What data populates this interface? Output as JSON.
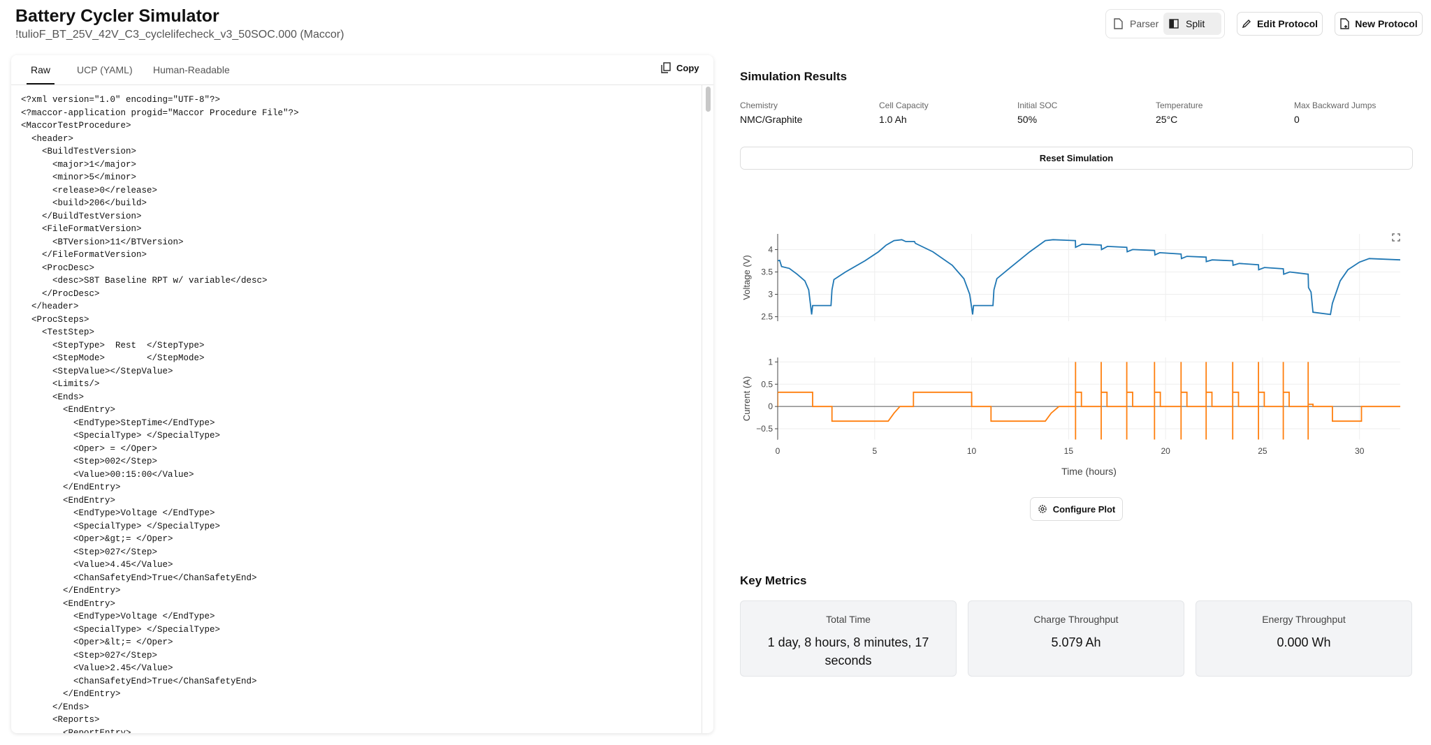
{
  "header": {
    "title": "Battery Cycler Simulator",
    "subtitle": "!tulioF_BT_25V_42V_C3_cyclelifecheck_v3_50SOC.000 (Maccor)"
  },
  "toolbar": {
    "parser": "Parser",
    "split": "Split",
    "edit": "Edit Protocol",
    "new": "New Protocol"
  },
  "editor": {
    "tabs": [
      "Raw",
      "UCP (YAML)",
      "Human-Readable"
    ],
    "copy": "Copy",
    "lines": [
      "<?xml version=\"1.0\" encoding=\"UTF-8\"?>",
      "<?maccor-application progid=\"Maccor Procedure File\"?>",
      "<MaccorTestProcedure>",
      "  <header>",
      "    <BuildTestVersion>",
      "      <major>1</major>",
      "      <minor>5</minor>",
      "      <release>0</release>",
      "      <build>206</build>",
      "    </BuildTestVersion>",
      "    <FileFormatVersion>",
      "      <BTVersion>11</BTVersion>",
      "    </FileFormatVersion>",
      "    <ProcDesc>",
      "      <desc>S8T Baseline RPT w/ variable</desc>",
      "    </ProcDesc>",
      "  </header>",
      "  <ProcSteps>",
      "    <TestStep>",
      "      <StepType>  Rest  </StepType>",
      "      <StepMode>        </StepMode>",
      "      <StepValue></StepValue>",
      "      <Limits/>",
      "      <Ends>",
      "        <EndEntry>",
      "          <EndType>StepTime</EndType>",
      "          <SpecialType> </SpecialType>",
      "          <Oper> = </Oper>",
      "          <Step>002</Step>",
      "          <Value>00:15:00</Value>",
      "        </EndEntry>",
      "        <EndEntry>",
      "          <EndType>Voltage </EndType>",
      "          <SpecialType> </SpecialType>",
      "          <Oper>&gt;= </Oper>",
      "          <Step>027</Step>",
      "          <Value>4.45</Value>",
      "          <ChanSafetyEnd>True</ChanSafetyEnd>",
      "        </EndEntry>",
      "        <EndEntry>",
      "          <EndType>Voltage </EndType>",
      "          <SpecialType> </SpecialType>",
      "          <Oper>&lt;= </Oper>",
      "          <Step>027</Step>",
      "          <Value>2.45</Value>",
      "          <ChanSafetyEnd>True</ChanSafetyEnd>",
      "        </EndEntry>",
      "      </Ends>",
      "      <Reports>",
      "        <ReportEntry>"
    ]
  },
  "results": {
    "title": "Simulation Results",
    "params": [
      {
        "label": "Chemistry",
        "value": "NMC/Graphite"
      },
      {
        "label": "Cell Capacity",
        "value": "1.0 Ah"
      },
      {
        "label": "Initial SOC",
        "value": "50%"
      },
      {
        "label": "Temperature",
        "value": "25°C"
      },
      {
        "label": "Max Backward Jumps",
        "value": 0
      }
    ],
    "reset": "Reset Simulation",
    "configure": "Configure Plot"
  },
  "chart_data": [
    {
      "type": "line",
      "ylabel": "Voltage (V)",
      "color": "#1f77b4",
      "grid": true,
      "xlim": [
        0,
        32.1
      ],
      "ylim": [
        2.4,
        4.35
      ],
      "yticks": [
        2.5,
        3,
        3.5,
        4
      ],
      "x": [
        0,
        0.1,
        0.2,
        0.6,
        1.0,
        1.4,
        1.6,
        1.75,
        1.8,
        2.75,
        2.8,
        2.9,
        3.5,
        4.5,
        5.2,
        5.6,
        6.0,
        6.4,
        6.6,
        7.05,
        7.1,
        8.0,
        9.0,
        9.6,
        9.9,
        10.05,
        10.1,
        11.1,
        11.15,
        11.3,
        12.0,
        13.0,
        13.8,
        14.2,
        15.35,
        15.36,
        15.7,
        16.68,
        16.7,
        17.0,
        18.0,
        18.02,
        18.3,
        19.43,
        19.45,
        19.7,
        20.8,
        20.82,
        21.1,
        22.09,
        22.1,
        22.4,
        23.46,
        23.48,
        23.8,
        24.79,
        24.8,
        25.1,
        26.07,
        26.09,
        26.4,
        27.35,
        27.37,
        27.5,
        27.6,
        28.5,
        28.6,
        29.0,
        29.4,
        30.0,
        30.5,
        32.1
      ],
      "values": [
        3.75,
        3.76,
        3.62,
        3.58,
        3.45,
        3.3,
        3.1,
        2.55,
        2.75,
        2.75,
        3.1,
        3.33,
        3.5,
        3.75,
        3.95,
        4.1,
        4.2,
        4.22,
        4.18,
        4.18,
        4.14,
        3.95,
        3.65,
        3.35,
        3.0,
        2.55,
        2.75,
        2.75,
        3.1,
        3.35,
        3.6,
        3.95,
        4.2,
        4.22,
        4.2,
        4.05,
        4.12,
        4.1,
        4.0,
        4.07,
        4.05,
        3.95,
        4.0,
        3.98,
        3.88,
        3.93,
        3.9,
        3.8,
        3.85,
        3.83,
        3.73,
        3.77,
        3.75,
        3.65,
        3.69,
        3.66,
        3.55,
        3.6,
        3.57,
        3.45,
        3.5,
        3.45,
        3.15,
        3.05,
        2.6,
        2.55,
        2.8,
        3.3,
        3.55,
        3.72,
        3.8,
        3.77
      ]
    },
    {
      "type": "line",
      "ylabel": "Current (A)",
      "xlabel": "Time (hours)",
      "color": "#ff7f0e",
      "grid": true,
      "xlim": [
        0,
        32.1
      ],
      "ylim": [
        -0.75,
        1.1
      ],
      "yticks": [
        {
          "value": -0.5,
          "label": "−0.5"
        },
        0,
        0.5,
        1
      ],
      "xticks": [
        0,
        5,
        10,
        15,
        20,
        25,
        30
      ],
      "x": [
        0,
        0,
        1.8,
        1.8,
        2.8,
        2.8,
        5.7,
        6.0,
        6.3,
        7.0,
        7.0,
        10.0,
        10.0,
        11.0,
        11.0,
        13.8,
        14.1,
        14.5,
        15.36,
        15.36,
        15.36,
        15.36,
        15.66,
        15.66,
        16.68,
        16.68,
        16.68,
        16.68,
        16.98,
        16.98,
        18.0,
        18.0,
        18.0,
        18.0,
        18.3,
        18.3,
        19.43,
        19.43,
        19.43,
        19.43,
        19.73,
        19.73,
        20.8,
        20.8,
        20.8,
        20.8,
        21.1,
        21.1,
        22.09,
        22.09,
        22.09,
        22.09,
        22.39,
        22.39,
        23.46,
        23.46,
        23.46,
        23.46,
        23.76,
        23.76,
        24.79,
        24.79,
        24.79,
        24.79,
        25.09,
        25.09,
        26.07,
        26.07,
        26.07,
        26.07,
        26.37,
        26.37,
        27.35,
        27.35,
        27.35,
        27.35,
        27.6,
        27.6,
        28.6,
        28.6,
        30.1,
        30.1,
        32.1
      ],
      "values": [
        0,
        0.32,
        0.32,
        0,
        0,
        -0.33,
        -0.33,
        -0.15,
        0,
        0,
        0.32,
        0.32,
        0,
        0,
        -0.33,
        -0.33,
        -0.15,
        0,
        0,
        1,
        -1,
        0.32,
        0.32,
        0,
        0,
        1,
        -1,
        0.32,
        0.32,
        0,
        0,
        1,
        -1,
        0.32,
        0.32,
        0,
        0,
        1,
        -1,
        0.32,
        0.32,
        0,
        0,
        1,
        -1,
        0.32,
        0.32,
        0,
        0,
        1,
        -1,
        0.32,
        0.32,
        0,
        0,
        1,
        -1,
        0.32,
        0.32,
        0,
        0,
        1,
        -1,
        0.32,
        0.32,
        0,
        0,
        1,
        -1,
        0.32,
        0.32,
        0,
        0,
        1,
        -1,
        0.05,
        0.05,
        0,
        0,
        -0.33,
        -0.33,
        0,
        0
      ]
    }
  ],
  "metrics": {
    "title": "Key Metrics",
    "cards": [
      {
        "label": "Total Time",
        "value": "1 day, 8 hours, 8 minutes, 17 seconds"
      },
      {
        "label": "Charge Throughput",
        "value": "5.079 Ah"
      },
      {
        "label": "Energy Throughput",
        "value": "0.000 Wh"
      }
    ]
  }
}
